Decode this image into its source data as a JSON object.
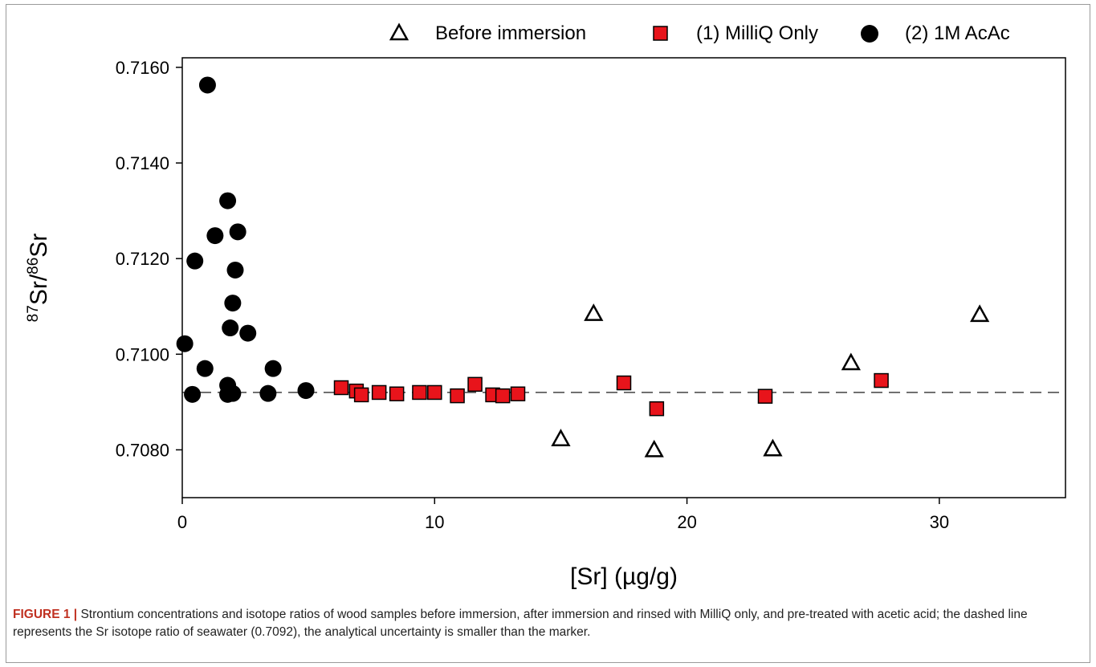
{
  "chart_data": {
    "type": "scatter",
    "xlabel": "[Sr] (µg/g)",
    "ylabel_parts": {
      "sup1": "87",
      "text1": "Sr/",
      "sup2": "86",
      "text2": "Sr"
    },
    "xlim": [
      0,
      35
    ],
    "ylim": [
      0.707,
      0.7162
    ],
    "x_ticks": [
      0,
      10,
      20,
      30
    ],
    "y_ticks": [
      0.708,
      0.71,
      0.712,
      0.714,
      0.716
    ],
    "y_tick_labels": [
      "0.7080",
      "0.7100",
      "0.7120",
      "0.7140",
      "0.7160"
    ],
    "reference_line": {
      "y": 0.7092,
      "style": "dashed"
    },
    "legend_position": "top",
    "series": [
      {
        "name": "Before immersion",
        "marker": "open-triangle",
        "color": "#000000",
        "points": [
          [
            15.0,
            0.70823
          ],
          [
            16.3,
            0.71085
          ],
          [
            18.7,
            0.708
          ],
          [
            23.4,
            0.70802
          ],
          [
            26.5,
            0.70982
          ],
          [
            31.6,
            0.71083
          ]
        ]
      },
      {
        "name": "(1) MilliQ Only",
        "marker": "square",
        "color": "#e8141b",
        "points": [
          [
            6.3,
            0.7093
          ],
          [
            6.9,
            0.70923
          ],
          [
            7.1,
            0.70915
          ],
          [
            7.8,
            0.7092
          ],
          [
            8.5,
            0.70917
          ],
          [
            9.4,
            0.7092
          ],
          [
            10.0,
            0.7092
          ],
          [
            10.9,
            0.70913
          ],
          [
            11.6,
            0.70937
          ],
          [
            12.3,
            0.70915
          ],
          [
            12.7,
            0.70913
          ],
          [
            13.3,
            0.70917
          ],
          [
            17.5,
            0.7094
          ],
          [
            18.8,
            0.70886
          ],
          [
            23.1,
            0.70912
          ],
          [
            27.7,
            0.70945
          ]
        ]
      },
      {
        "name": "(2) 1M AcAc",
        "marker": "filled-circle",
        "color": "#000000",
        "points": [
          [
            0.1,
            0.71022
          ],
          [
            0.4,
            0.70916
          ],
          [
            0.5,
            0.71195
          ],
          [
            0.9,
            0.7097
          ],
          [
            1.0,
            0.71563
          ],
          [
            1.3,
            0.71248
          ],
          [
            1.8,
            0.71321
          ],
          [
            1.8,
            0.70935
          ],
          [
            1.8,
            0.70916
          ],
          [
            1.9,
            0.71055
          ],
          [
            2.0,
            0.71107
          ],
          [
            2.0,
            0.70918
          ],
          [
            2.1,
            0.71176
          ],
          [
            2.2,
            0.71256
          ],
          [
            2.6,
            0.71044
          ],
          [
            3.4,
            0.70918
          ],
          [
            3.6,
            0.7097
          ],
          [
            4.9,
            0.70924
          ]
        ]
      }
    ]
  },
  "caption": {
    "lead": "FIGURE 1 |",
    "text": " Strontium concentrations and isotope ratios of wood samples before immersion, after immersion and rinsed with MilliQ only, and pre-treated with acetic acid; the dashed line represents the Sr isotope ratio of seawater (0.7092), the analytical uncertainty is smaller than the marker."
  }
}
